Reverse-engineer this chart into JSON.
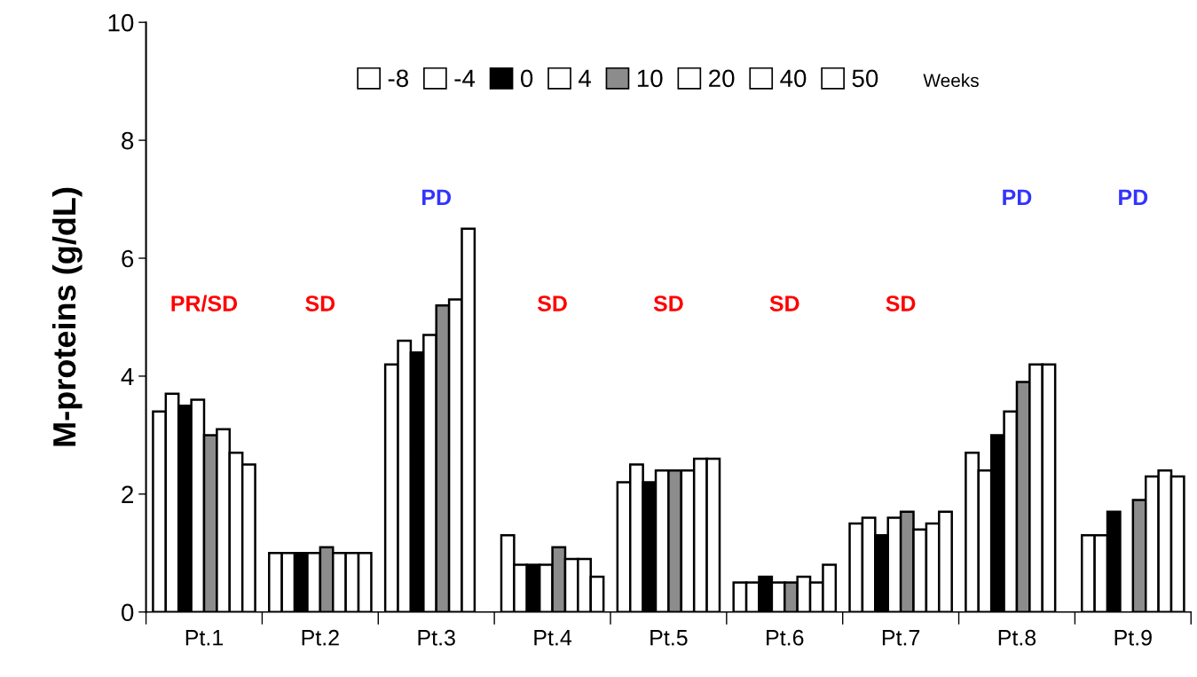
{
  "chart_data": {
    "type": "bar",
    "ylabel": "M-proteins (g/dL)",
    "categories": [
      "Pt.1",
      "Pt.2",
      "Pt.3",
      "Pt.4",
      "Pt.5",
      "Pt.6",
      "Pt.7",
      "Pt.8",
      "Pt.9"
    ],
    "ylim": [
      0,
      10
    ],
    "yticks": [
      0,
      2,
      4,
      6,
      8,
      10
    ],
    "grid": false,
    "legend": "top",
    "legend_title": "Weeks",
    "series": [
      {
        "name": "-8",
        "color": "#ffffff",
        "values": [
          3.4,
          1.0,
          4.2,
          1.3,
          2.2,
          0.5,
          1.5,
          2.7,
          1.3
        ]
      },
      {
        "name": "-4",
        "color": "#ffffff",
        "values": [
          3.7,
          1.0,
          4.6,
          0.8,
          2.5,
          0.5,
          1.6,
          2.4,
          1.3
        ]
      },
      {
        "name": "0",
        "color": "#000000",
        "values": [
          3.5,
          1.0,
          4.4,
          0.8,
          2.2,
          0.6,
          1.3,
          3.0,
          1.7
        ]
      },
      {
        "name": "4",
        "color": "#ffffff",
        "values": [
          3.6,
          1.0,
          4.7,
          0.8,
          2.4,
          0.5,
          1.6,
          3.4,
          null
        ]
      },
      {
        "name": "10",
        "color": "#8c8c8c",
        "values": [
          3.0,
          1.1,
          5.2,
          1.1,
          2.4,
          0.5,
          1.7,
          3.9,
          1.9
        ]
      },
      {
        "name": "20",
        "color": "#ffffff",
        "values": [
          3.1,
          1.0,
          5.3,
          0.9,
          2.4,
          0.6,
          1.4,
          4.2,
          2.3
        ]
      },
      {
        "name": "40",
        "color": "#ffffff",
        "values": [
          2.7,
          1.0,
          6.5,
          0.9,
          2.6,
          0.5,
          1.5,
          4.2,
          2.4
        ]
      },
      {
        "name": "50",
        "color": "#ffffff",
        "values": [
          2.5,
          1.0,
          null,
          0.6,
          2.6,
          0.8,
          1.7,
          null,
          2.3
        ]
      }
    ],
    "annotations": [
      "PR/SD",
      "SD",
      "PD",
      "SD",
      "SD",
      "SD",
      "SD",
      "PD",
      "PD"
    ]
  }
}
